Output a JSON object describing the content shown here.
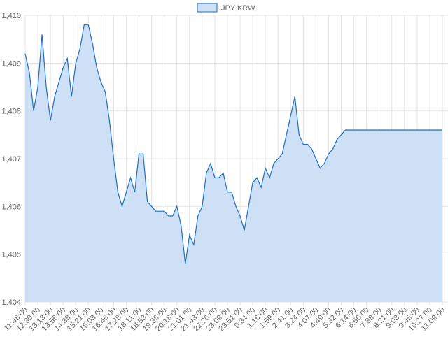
{
  "chart_data": {
    "type": "line",
    "legend": "JPY KRW",
    "color": "#1d6fc4",
    "fill": "#cde0f5",
    "grid": true,
    "categories": [
      "11:48:00",
      null,
      null,
      "12:30:00",
      null,
      null,
      "13:13:00",
      null,
      null,
      "13:56:00",
      null,
      null,
      "14:38:00",
      null,
      null,
      "15:21:00",
      null,
      null,
      "16:03:00",
      null,
      null,
      "16:46:00",
      null,
      null,
      "17:28:00",
      null,
      null,
      "18:11:00",
      null,
      null,
      "18:53:00",
      null,
      null,
      "19:36:00",
      null,
      null,
      "20:18:00",
      null,
      null,
      "21:01:00",
      null,
      null,
      "21:43:00",
      null,
      null,
      "22:26:00",
      null,
      null,
      "23:09:00",
      null,
      null,
      "23:51:00",
      null,
      null,
      "0:34:00",
      null,
      null,
      "1:16:00",
      null,
      null,
      "1:59:00",
      null,
      null,
      "2:41:00",
      null,
      null,
      "3:24:00",
      null,
      null,
      "4:07:00",
      null,
      null,
      "4:49:00",
      null,
      null,
      "5:32:00",
      null,
      null,
      "6:14:00",
      null,
      null,
      "6:56:00",
      null,
      null,
      "7:38:00",
      null,
      null,
      "8:21:00",
      null,
      null,
      "9:03:00",
      null,
      null,
      "9:45:00",
      null,
      null,
      "10:27:00",
      null,
      null,
      "11:09:00"
    ],
    "values": [
      1409.2,
      1408.8,
      1408.0,
      1408.5,
      1409.6,
      1408.5,
      1407.8,
      1408.3,
      1408.6,
      1408.9,
      1409.1,
      1408.3,
      1409.0,
      1409.3,
      1409.8,
      1409.8,
      1409.4,
      1408.9,
      1408.6,
      1408.4,
      1407.8,
      1407.0,
      1406.3,
      1406.0,
      1406.3,
      1406.6,
      1406.3,
      1407.1,
      1407.1,
      1406.1,
      1406.0,
      1405.9,
      1405.9,
      1405.9,
      1405.8,
      1405.8,
      1406.0,
      1405.6,
      1404.8,
      1405.4,
      1405.2,
      1405.8,
      1406.0,
      1406.7,
      1406.9,
      1406.6,
      1406.6,
      1406.7,
      1406.3,
      1406.3,
      1406.0,
      1405.8,
      1405.5,
      1406.0,
      1406.5,
      1406.6,
      1406.4,
      1406.8,
      1406.6,
      1406.9,
      1407.0,
      1407.1,
      1407.5,
      1407.9,
      1408.3,
      1407.5,
      1407.3,
      1407.3,
      1407.2,
      1407.0,
      1406.8,
      1406.9,
      1407.1,
      1407.2,
      1407.4,
      1407.5,
      1407.6,
      1407.6,
      1407.6,
      1407.6,
      1407.6,
      1407.6,
      1407.6,
      1407.6,
      1407.6,
      1407.6,
      1407.6,
      1407.6,
      1407.6,
      1407.6,
      1407.6,
      1407.6,
      1407.6,
      1407.6,
      1407.6,
      1407.6,
      1407.6,
      1407.6,
      1407.6,
      1407.6
    ],
    "ylim": [
      1404,
      1410
    ],
    "yticks": [
      {
        "value": 1404,
        "label": "1,404"
      },
      {
        "value": 1405,
        "label": "1,405"
      },
      {
        "value": 1406,
        "label": "1,406"
      },
      {
        "value": 1407,
        "label": "1,407"
      },
      {
        "value": 1408,
        "label": "1,408"
      },
      {
        "value": 1409,
        "label": "1,409"
      },
      {
        "value": 1410,
        "label": "1,410"
      }
    ]
  }
}
